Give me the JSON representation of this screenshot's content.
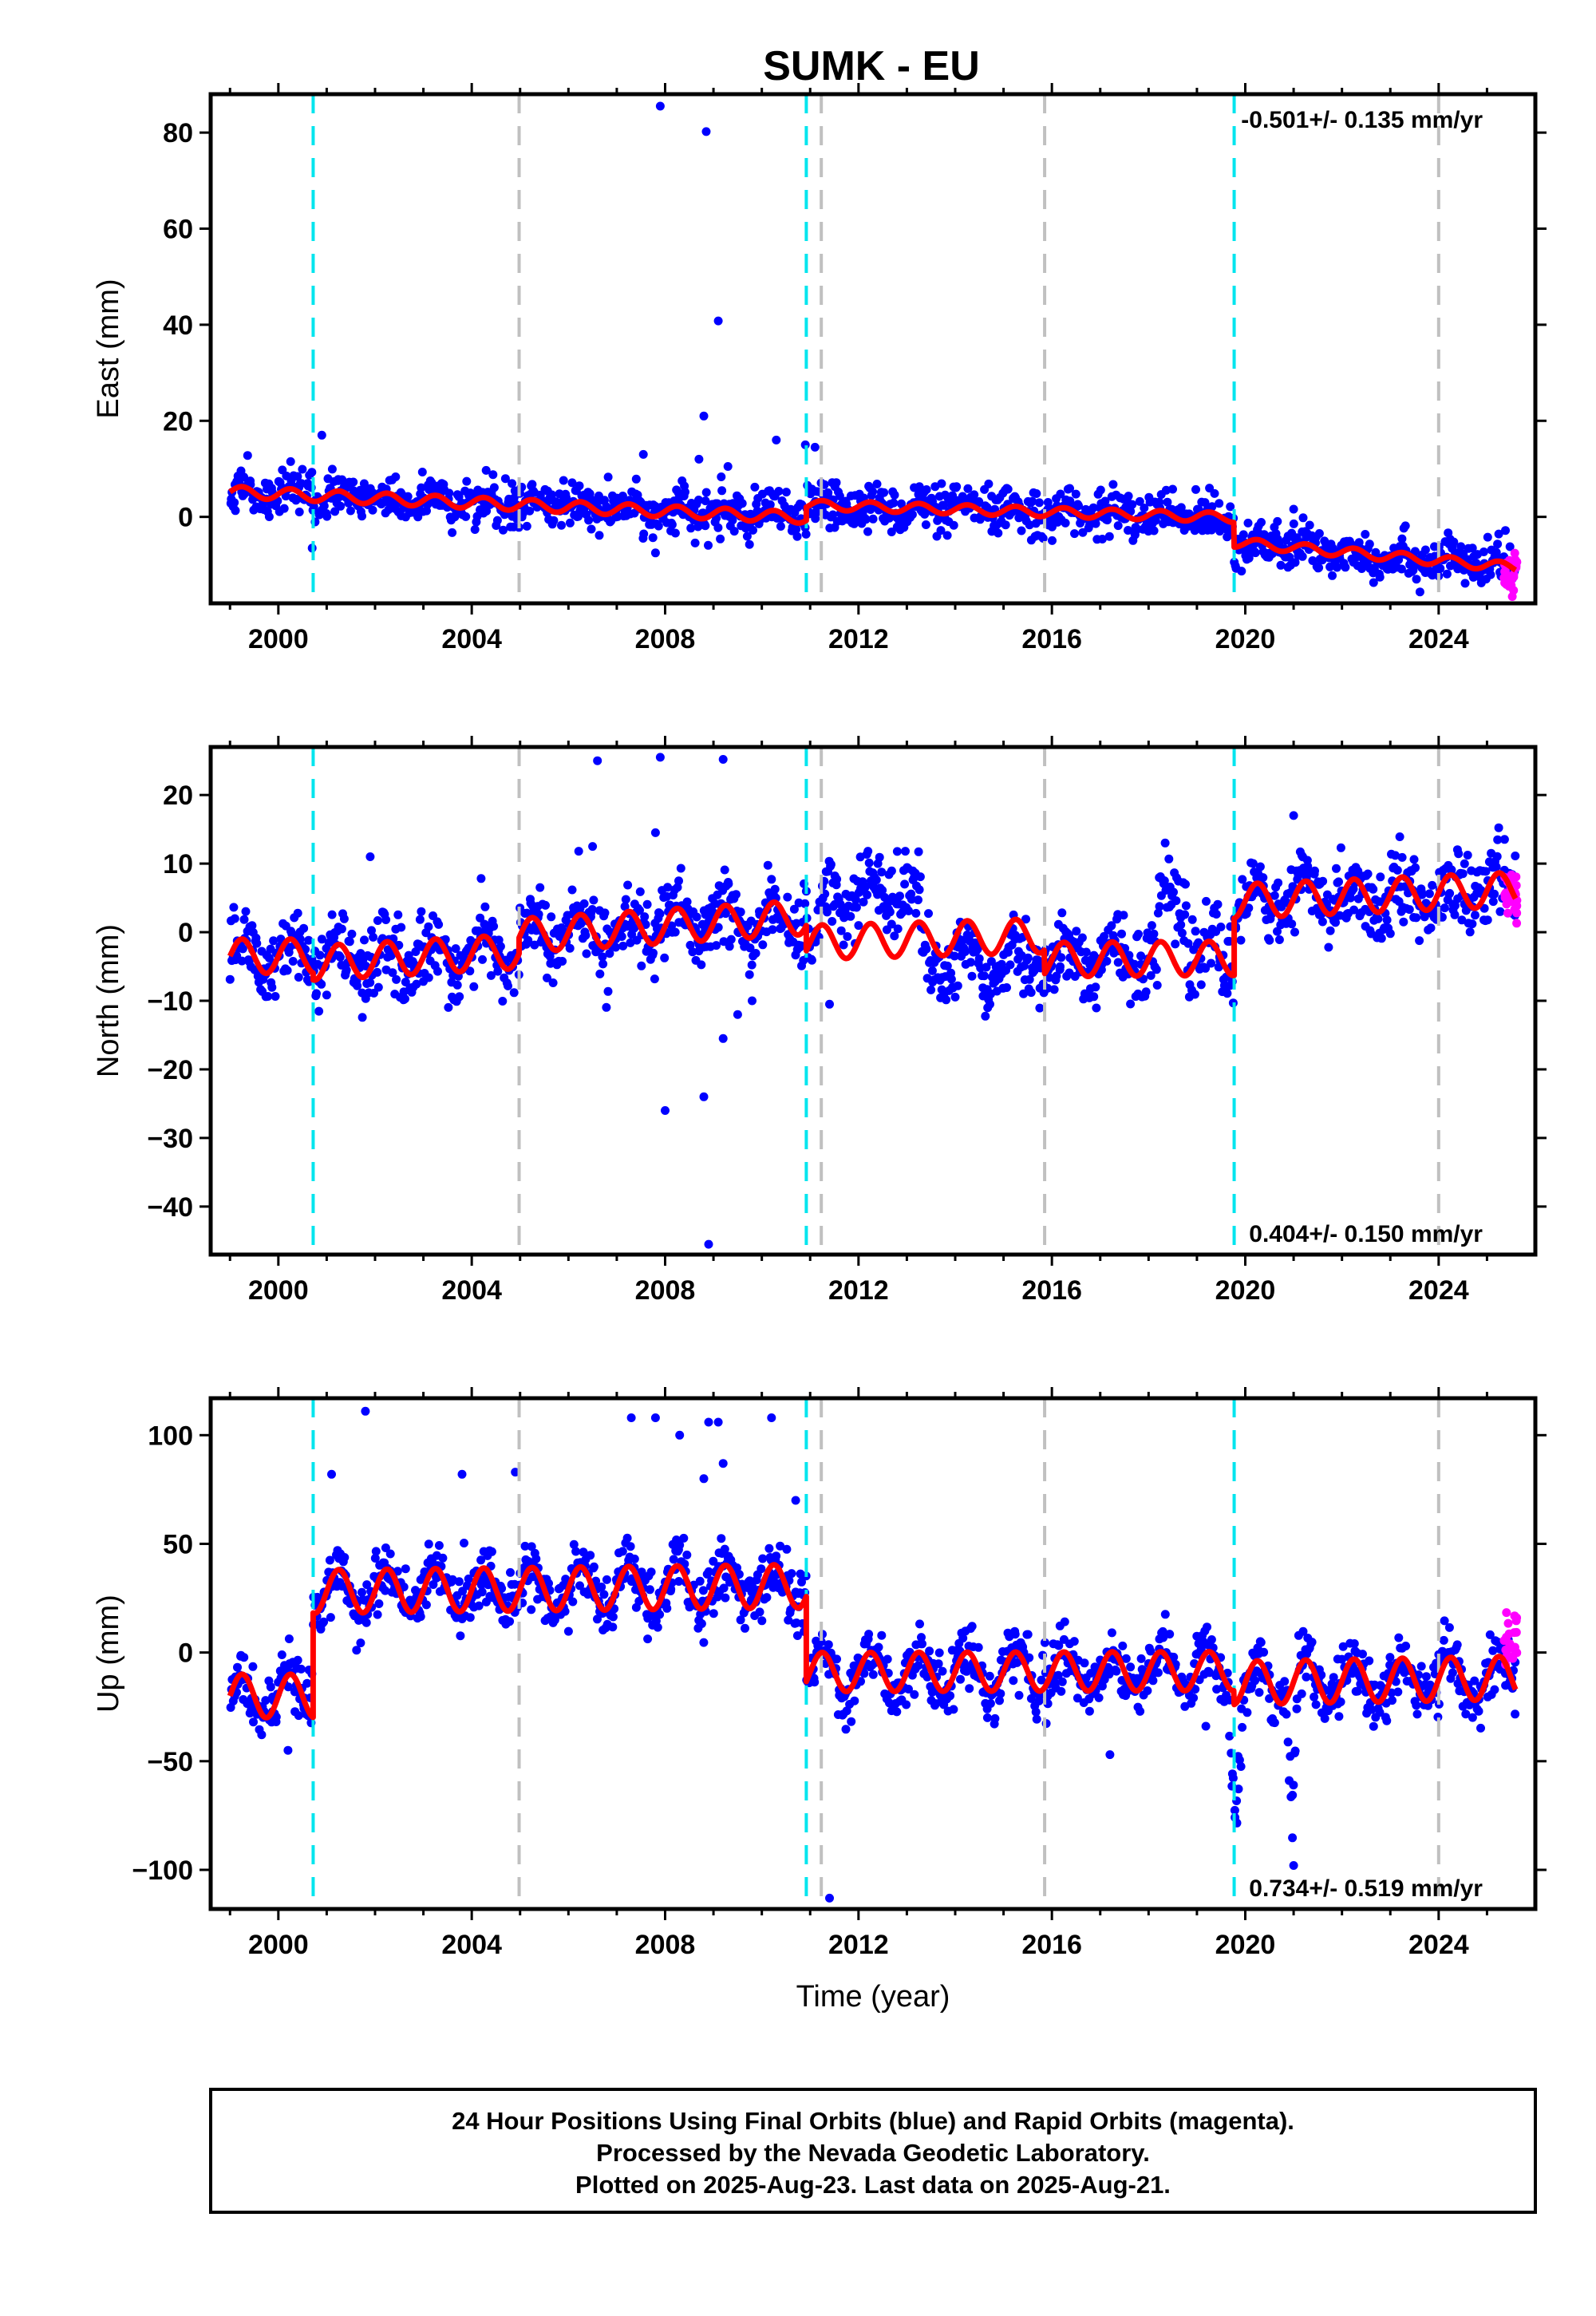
{
  "title": "SUMK - EU",
  "colors": {
    "final": "#0000ff",
    "rapid": "#ff00ff",
    "model": "#ff0000",
    "offset_equipment": "#00e5ee",
    "offset_other": "#c0c0c0"
  },
  "chart_data": [
    {
      "type": "scatter",
      "ylabel": "East (mm)",
      "xlabel": "",
      "xlim": [
        1998.6,
        2026.0
      ],
      "ylim": [
        -18,
        88
      ],
      "yticks": [
        0,
        20,
        40,
        60,
        80
      ],
      "xticks": [
        2000,
        2004,
        2008,
        2012,
        2016,
        2020,
        2024
      ],
      "xtick_labels": [
        "2000",
        "2004",
        "2008",
        "2012",
        "2016",
        "2020",
        "2024"
      ],
      "rate_text": "-0.501+/- 0.135 mm/yr",
      "rate_position": "top-right",
      "cyan_lines": [
        2000.72,
        2010.92,
        2019.77
      ],
      "gray_lines": [
        2004.98,
        2011.23,
        2015.85,
        2024.0
      ],
      "segments": [
        {
          "start": 1999.0,
          "end": 2010.92,
          "y0": 5.2,
          "slope": -0.45,
          "amp": 1.2
        },
        {
          "start": 2010.92,
          "end": 2019.77,
          "y0": 2.5,
          "slope": -0.3,
          "amp": 1.0
        },
        {
          "start": 2019.77,
          "end": 2025.6,
          "y0": -5.3,
          "slope": -0.9,
          "amp": 1.0
        }
      ],
      "scatter_sd": 2.3,
      "outliers": [
        [
          2007.9,
          85.5
        ],
        [
          2008.85,
          80.2
        ],
        [
          2009.1,
          40.8
        ],
        [
          2008.8,
          21.0
        ],
        [
          2010.3,
          16.0
        ],
        [
          2010.9,
          15.0
        ],
        [
          2011.1,
          14.5
        ],
        [
          2007.55,
          13.0
        ],
        [
          2008.7,
          12.0
        ],
        [
          2009.3,
          10.5
        ],
        [
          2000.9,
          17.0
        ],
        [
          2021.0,
          1.6
        ],
        [
          2007.8,
          -7.5
        ],
        [
          2000.7,
          -6.5
        ]
      ],
      "rapid": {
        "start": 2025.35,
        "end": 2025.62,
        "y": -11.0,
        "sd": 2.0
      }
    },
    {
      "type": "scatter",
      "ylabel": "North (mm)",
      "xlabel": "",
      "xlim": [
        1998.6,
        2026.0
      ],
      "ylim": [
        -47,
        27
      ],
      "yticks": [
        -40,
        -30,
        -20,
        -10,
        0,
        10,
        20
      ],
      "xticks": [
        2000,
        2004,
        2008,
        2012,
        2016,
        2020,
        2024
      ],
      "xtick_labels": [
        "2000",
        "2004",
        "2008",
        "2012",
        "2016",
        "2020",
        "2024"
      ],
      "rate_text": "0.404+/- 0.150 mm/yr",
      "rate_position": "bottom-right",
      "cyan_lines": [
        2000.72,
        2010.92,
        2019.77
      ],
      "gray_lines": [
        2004.98,
        2011.23,
        2015.85,
        2024.0
      ],
      "segments": [
        {
          "start": 1999.0,
          "end": 2000.72,
          "y0": -3.5,
          "slope": 0.0,
          "amp": 2.5
        },
        {
          "start": 2000.72,
          "end": 2004.98,
          "y0": -4.5,
          "slope": 0.4,
          "amp": 2.5
        },
        {
          "start": 2004.98,
          "end": 2010.92,
          "y0": -0.5,
          "slope": 0.45,
          "amp": 2.5
        },
        {
          "start": 2010.92,
          "end": 2015.85,
          "y0": -1.5,
          "slope": 0.2,
          "amp": 2.5
        },
        {
          "start": 2015.85,
          "end": 2019.77,
          "y0": -4.0,
          "slope": 0.05,
          "amp": 2.5
        },
        {
          "start": 2019.77,
          "end": 2025.6,
          "y0": 4.5,
          "slope": 0.3,
          "amp": 2.5
        }
      ],
      "scatter_sd": 2.6,
      "shifts": [
        {
          "start": 2011.23,
          "end": 2013.3,
          "dy": 7.0
        },
        {
          "start": 2013.3,
          "end": 2015.85,
          "dy": -3.5
        },
        {
          "start": 2018.2,
          "end": 2018.8,
          "dy": 10.0
        }
      ],
      "outliers": [
        [
          2006.6,
          25.0
        ],
        [
          2007.9,
          25.5
        ],
        [
          2009.2,
          25.2
        ],
        [
          2007.8,
          14.5
        ],
        [
          2006.5,
          12.5
        ],
        [
          2001.9,
          11.0
        ],
        [
          2008.0,
          -26.0
        ],
        [
          2008.8,
          -24.0
        ],
        [
          2008.9,
          -45.5
        ],
        [
          2009.5,
          -12.0
        ],
        [
          2009.2,
          -15.5
        ],
        [
          2011.4,
          -10.5
        ],
        [
          2021.0,
          17.0
        ],
        [
          2009.8,
          -10.0
        ]
      ],
      "rapid": {
        "start": 2025.35,
        "end": 2025.62,
        "y": 5.5,
        "sd": 1.5
      }
    },
    {
      "type": "scatter",
      "ylabel": "Up (mm)",
      "xlabel": "Time (year)",
      "xlim": [
        1998.6,
        2026.0
      ],
      "ylim": [
        -118,
        117
      ],
      "yticks": [
        -100,
        -50,
        0,
        50,
        100
      ],
      "xticks": [
        2000,
        2004,
        2008,
        2012,
        2016,
        2020,
        2024
      ],
      "xtick_labels": [
        "2000",
        "2004",
        "2008",
        "2012",
        "2016",
        "2020",
        "2024"
      ],
      "rate_text": "0.734+/- 0.519 mm/yr",
      "rate_position": "bottom-right",
      "cyan_lines": [
        2000.72,
        2010.92,
        2019.77
      ],
      "gray_lines": [
        2004.98,
        2011.23,
        2015.85,
        2024.0
      ],
      "segments": [
        {
          "start": 1999.0,
          "end": 2000.72,
          "y0": -20.0,
          "slope": 0.0,
          "amp": 10.0
        },
        {
          "start": 2000.72,
          "end": 2010.92,
          "y0": 28.0,
          "slope": 0.25,
          "amp": 10.0
        },
        {
          "start": 2010.92,
          "end": 2019.77,
          "y0": -9.0,
          "slope": 0.05,
          "amp": 9.0
        },
        {
          "start": 2019.77,
          "end": 2025.6,
          "y0": -14.0,
          "slope": 0.4,
          "amp": 10.0
        }
      ],
      "scatter_sd": 7.0,
      "dips": [
        {
          "start": 2019.65,
          "end": 2019.95,
          "dy": -65.0
        },
        {
          "start": 2020.85,
          "end": 2021.1,
          "dy": -55.0
        }
      ],
      "outliers": [
        [
          2001.8,
          111.0
        ],
        [
          2007.3,
          108.0
        ],
        [
          2007.8,
          108.0
        ],
        [
          2008.9,
          106.0
        ],
        [
          2009.1,
          106.0
        ],
        [
          2010.2,
          108.0
        ],
        [
          2008.3,
          100.0
        ],
        [
          2011.4,
          -113.0
        ],
        [
          2001.1,
          82.0
        ],
        [
          2003.8,
          82.0
        ],
        [
          2004.9,
          83.0
        ],
        [
          2009.2,
          87.0
        ],
        [
          2010.7,
          70.0
        ],
        [
          2017.2,
          -47.0
        ],
        [
          2021.0,
          -98.0
        ],
        [
          2000.2,
          -45.0
        ],
        [
          2008.8,
          80.0
        ]
      ],
      "rapid": {
        "start": 2025.35,
        "end": 2025.62,
        "y": 5.0,
        "sd": 8.0
      }
    }
  ],
  "footer": {
    "line1": "24 Hour Positions Using Final Orbits (blue) and Rapid Orbits (magenta).",
    "line2": "Processed by the Nevada Geodetic Laboratory.",
    "line3": "Plotted on 2025-Aug-23. Last data on 2025-Aug-21."
  }
}
